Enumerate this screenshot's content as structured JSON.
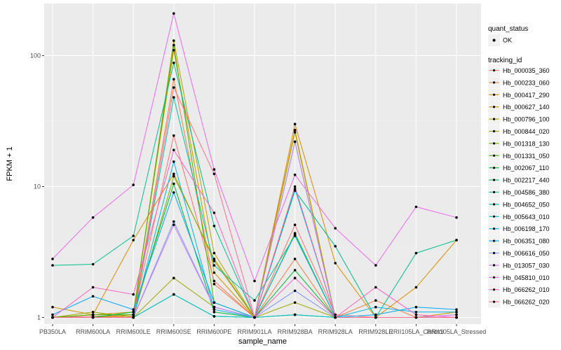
{
  "chart_data": {
    "type": "line",
    "title": "",
    "xlabel": "sample_name",
    "ylabel": "FPKM + 1",
    "y_scale": "log10",
    "ylim": [
      0.89,
      250
    ],
    "y_ticks": [
      1,
      10,
      100
    ],
    "y_tick_labels": [
      "1",
      "10",
      "100"
    ],
    "grid": true,
    "legend_position": "right",
    "categories": [
      "PB350LA",
      "RRIM600LA",
      "RRIM600LE",
      "RRIM600SE",
      "RRIM600PE",
      "RRIM901LA",
      "RRIM928BA",
      "RRIM928LA",
      "RRIM928LE",
      "RRII105LA_Control",
      "RRII105LA_Stressed"
    ],
    "shape_legend": {
      "title": "quant_status",
      "entries": [
        "OK"
      ]
    },
    "color_legend": {
      "title": "tracking_id"
    },
    "series": [
      {
        "name": "Hb_000035_360",
        "color": "#F8766D",
        "values": [
          1.0,
          1.02,
          1.05,
          24.5,
          1.9,
          1.0,
          5.1,
          1.05,
          1.0,
          1.0,
          1.0
        ]
      },
      {
        "name": "Hb_000233_060",
        "color": "#EE8042",
        "values": [
          1.0,
          1.0,
          1.02,
          66,
          1.8,
          1.0,
          2.8,
          1.0,
          1.35,
          1.0,
          1.0
        ]
      },
      {
        "name": "Hb_000417_290",
        "color": "#DE8C00",
        "values": [
          1.0,
          1.05,
          3.9,
          12.5,
          2.7,
          1.0,
          30,
          2.6,
          1.0,
          1.7,
          3.9
        ]
      },
      {
        "name": "Hb_000627_140",
        "color": "#CB9600",
        "values": [
          1.2,
          1.05,
          1.1,
          110,
          2.2,
          1.0,
          27,
          1.0,
          1.0,
          1.0,
          1.1
        ]
      },
      {
        "name": "Hb_000796_100",
        "color": "#B79F00",
        "values": [
          1.0,
          1.0,
          1.05,
          130,
          3.1,
          1.0,
          26,
          1.0,
          1.0,
          1.0,
          1.05
        ]
      },
      {
        "name": "Hb_000844_020",
        "color": "#9DA700",
        "values": [
          1.0,
          1.1,
          1.0,
          2.0,
          1.2,
          1.0,
          1.3,
          1.0,
          1.0,
          1.0,
          1.0
        ]
      },
      {
        "name": "Hb_001318_130",
        "color": "#7CAE00",
        "values": [
          1.0,
          1.0,
          1.0,
          12.0,
          2.8,
          1.0,
          4.4,
          1.0,
          1.0,
          1.0,
          1.0
        ]
      },
      {
        "name": "Hb_001331_050",
        "color": "#49B500",
        "values": [
          1.0,
          1.05,
          1.05,
          120,
          1.3,
          1.0,
          22,
          1.0,
          1.0,
          1.0,
          1.0
        ]
      },
      {
        "name": "Hb_002067_110",
        "color": "#00BA38",
        "values": [
          1.0,
          1.0,
          1.1,
          10.5,
          1.1,
          1.0,
          2.3,
          1.0,
          1.0,
          1.0,
          1.0
        ]
      },
      {
        "name": "Hb_002217_440",
        "color": "#00BE6C",
        "values": [
          1.0,
          1.0,
          1.0,
          1.5,
          1.02,
          1.0,
          1.05,
          1.0,
          1.0,
          1.0,
          1.0
        ]
      },
      {
        "name": "Hb_004586_380",
        "color": "#00C08B",
        "values": [
          2.5,
          2.55,
          4.2,
          88,
          5.0,
          1.0,
          9.3,
          3.5,
          1.0,
          3.1,
          3.9
        ]
      },
      {
        "name": "Hb_004652_050",
        "color": "#00C1A7",
        "values": [
          1.0,
          1.0,
          1.0,
          48,
          2.5,
          1.35,
          4.2,
          1.0,
          1.0,
          1.0,
          1.0
        ]
      },
      {
        "name": "Hb_005643_010",
        "color": "#00BFC4",
        "values": [
          1.0,
          1.0,
          1.0,
          1.5,
          1.02,
          1.0,
          1.05,
          1.0,
          1.0,
          1.0,
          1.0
        ]
      },
      {
        "name": "Hb_006198_170",
        "color": "#00B8E7",
        "values": [
          1.0,
          1.0,
          1.0,
          15.5,
          1.15,
          1.0,
          4.3,
          1.0,
          1.2,
          1.1,
          1.1
        ]
      },
      {
        "name": "Hb_006351_080",
        "color": "#00A9FF",
        "values": [
          1.05,
          1.45,
          1.15,
          9.0,
          1.3,
          1.0,
          9.6,
          1.0,
          1.05,
          1.2,
          1.15
        ]
      },
      {
        "name": "Hb_006616_050",
        "color": "#8494FF",
        "values": [
          1.0,
          1.0,
          1.0,
          5.4,
          1.2,
          1.0,
          1.6,
          1.0,
          1.0,
          1.0,
          1.0
        ]
      },
      {
        "name": "Hb_013057_030",
        "color": "#C77CFF",
        "values": [
          1.0,
          1.0,
          1.0,
          5.1,
          1.2,
          1.0,
          22,
          1.0,
          1.0,
          1.0,
          1.05
        ]
      },
      {
        "name": "Hb_045810_010",
        "color": "#ED68ED",
        "values": [
          2.8,
          5.8,
          10.3,
          210,
          13.5,
          1.9,
          12.3,
          4.8,
          2.5,
          7.0,
          5.8
        ]
      },
      {
        "name": "Hb_066262_010",
        "color": "#FF61C3",
        "values": [
          1.0,
          1.7,
          1.5,
          19,
          6.3,
          1.0,
          2.0,
          1.0,
          1.7,
          1.05,
          1.0
        ]
      },
      {
        "name": "Hb_066262_020",
        "color": "#FF6C91",
        "values": [
          1.0,
          1.0,
          1.0,
          57,
          12.5,
          1.0,
          10.0,
          1.0,
          1.0,
          1.0,
          1.0
        ]
      }
    ]
  }
}
